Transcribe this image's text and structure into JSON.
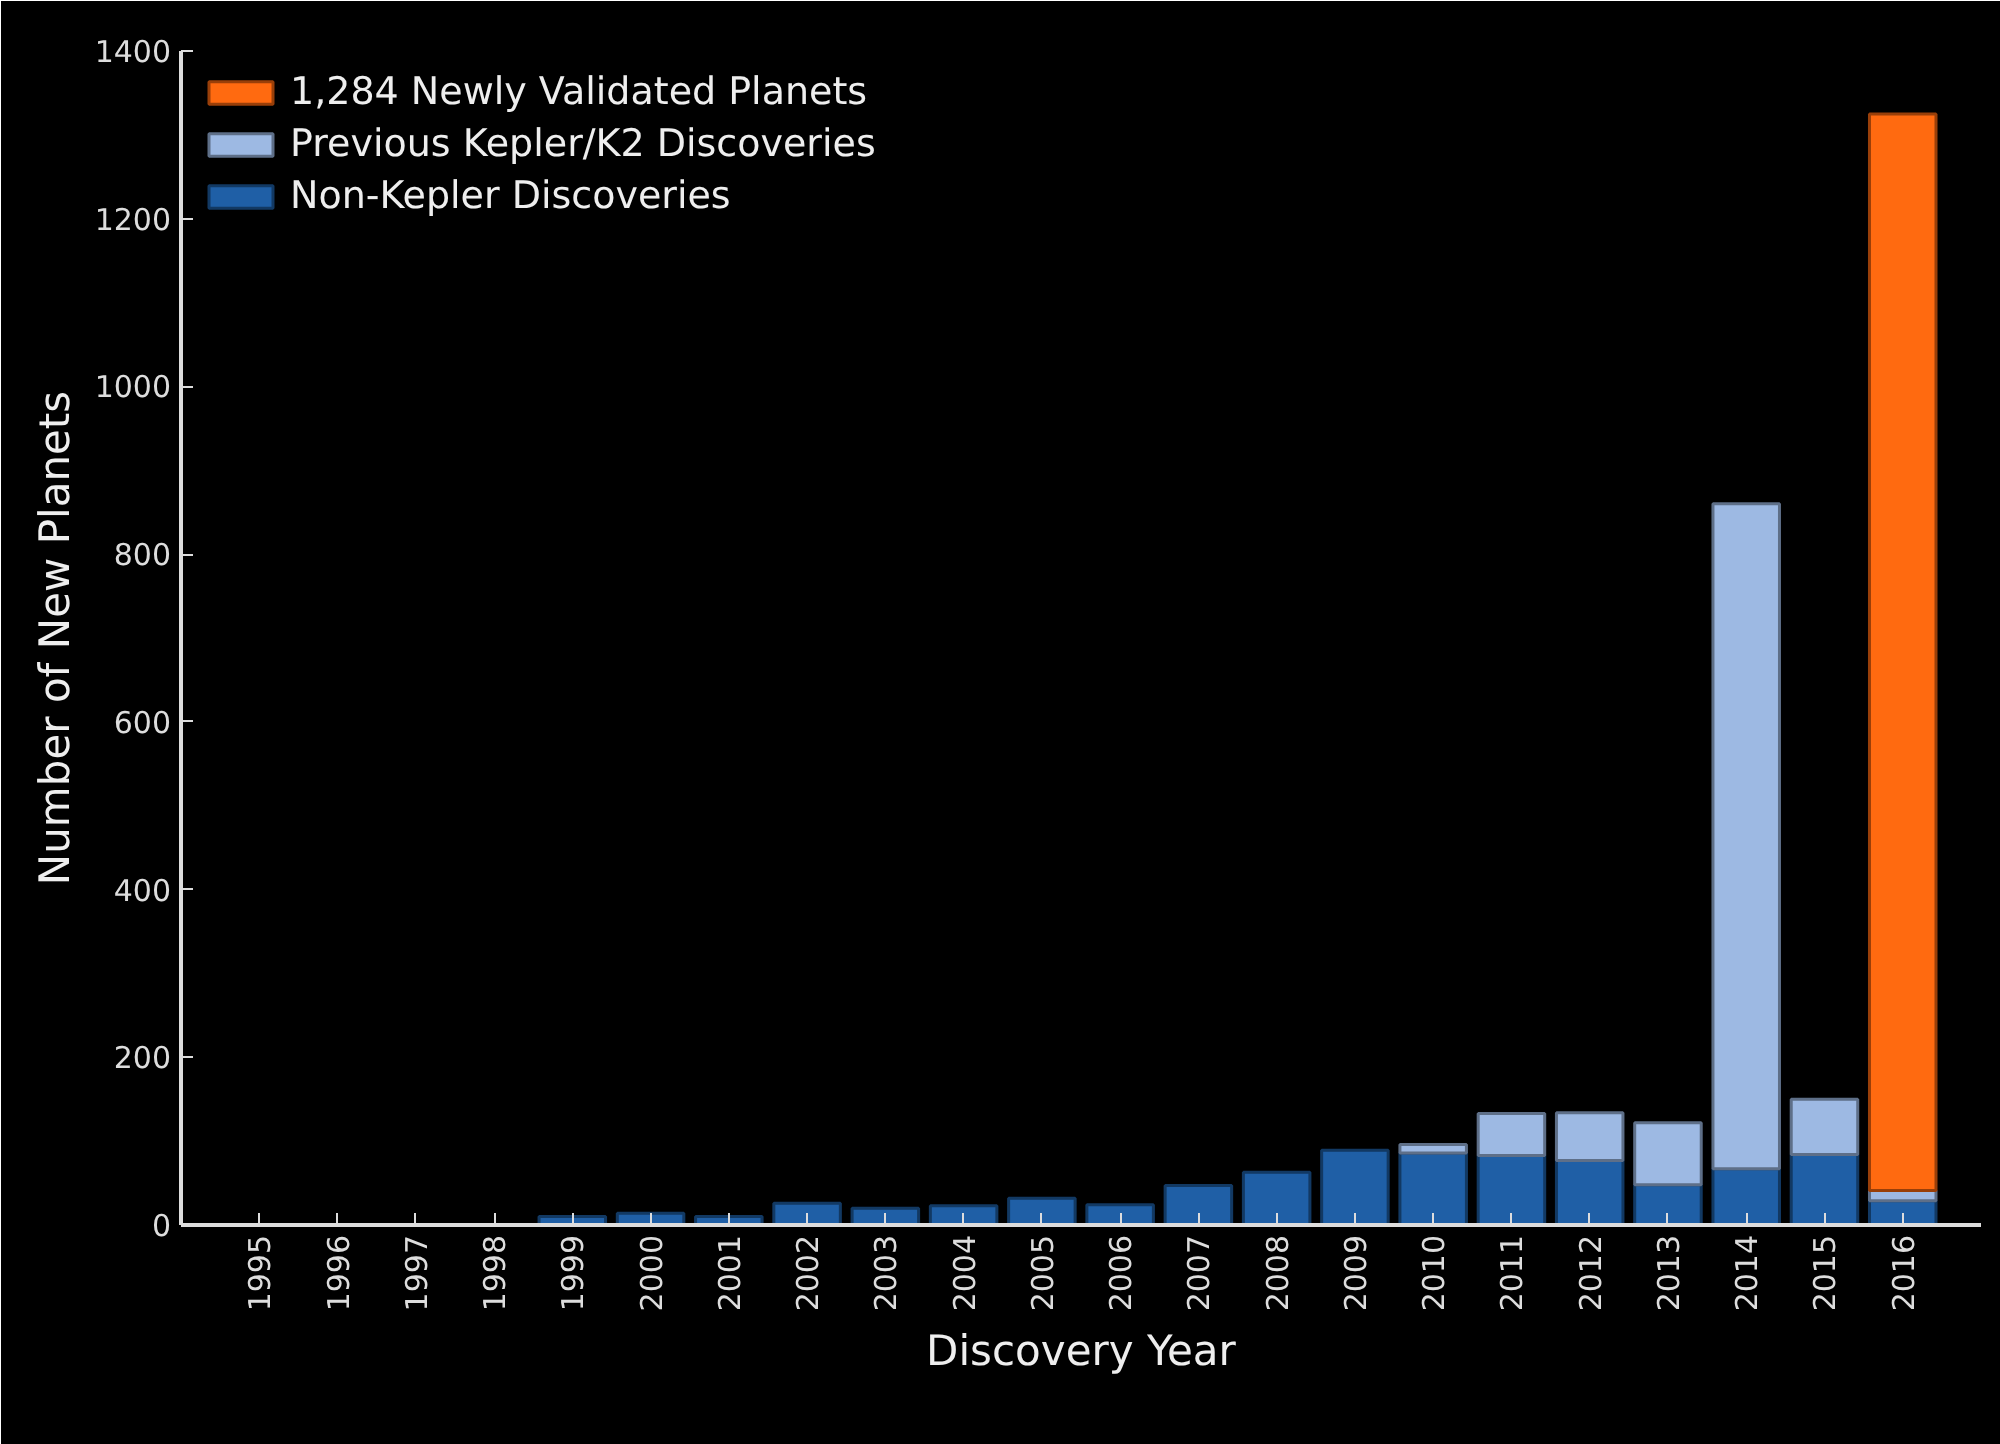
{
  "chart_data": {
    "type": "bar",
    "stacked": true,
    "xlabel": "Discovery Year",
    "ylabel": "Number of New Planets",
    "categories": [
      "1995",
      "1996",
      "1997",
      "1998",
      "1999",
      "2000",
      "2001",
      "2002",
      "2003",
      "2004",
      "2005",
      "2006",
      "2007",
      "2008",
      "2009",
      "2010",
      "2011",
      "2012",
      "2013",
      "2014",
      "2015",
      "2016"
    ],
    "series": [
      {
        "name": "Non-Kepler Discoveries",
        "color": "#1f5fa6",
        "values": [
          null,
          null,
          null,
          null,
          10,
          14,
          10,
          26,
          20,
          23,
          32,
          24,
          47,
          63,
          89,
          86,
          83,
          77,
          48,
          67,
          84,
          29
        ]
      },
      {
        "name": "Previous Kepler/K2 Discoveries",
        "color": "#9db9e3",
        "values": [
          0,
          0,
          0,
          0,
          0,
          0,
          0,
          0,
          0,
          0,
          0,
          0,
          0,
          0,
          0,
          10,
          50,
          57,
          74,
          793,
          66,
          12
        ]
      },
      {
        "name": "1,284 Newly Validated Planets",
        "color": "#ff6a10",
        "values": [
          0,
          0,
          0,
          0,
          0,
          0,
          0,
          0,
          0,
          0,
          0,
          0,
          0,
          0,
          0,
          0,
          0,
          0,
          0,
          0,
          0,
          1284
        ]
      }
    ],
    "ylim": [
      0,
      1400
    ],
    "yticks": [
      0,
      200,
      400,
      600,
      800,
      1000,
      1200,
      1400
    ],
    "grid": false,
    "legend": "top left"
  }
}
